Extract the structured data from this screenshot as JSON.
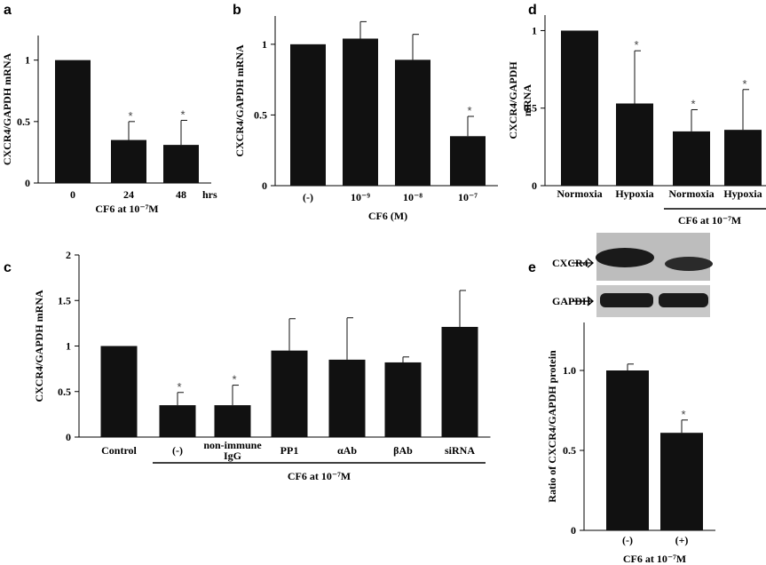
{
  "chart_data": [
    {
      "panel": "a",
      "type": "bar",
      "categories": [
        "0",
        "24",
        "48"
      ],
      "categories_unit": "hrs",
      "values": [
        1.0,
        0.35,
        0.31
      ],
      "errors": [
        0,
        0.15,
        0.2
      ],
      "significant": [
        false,
        true,
        true
      ],
      "ylabel": "CXCR4/GAPDH mRNA",
      "xlabel": "CF6 at 10⁻⁷M",
      "ylim": [
        0,
        1.2
      ],
      "yticks": [
        "0",
        "0.5",
        "1"
      ]
    },
    {
      "panel": "b",
      "type": "bar",
      "categories": [
        "(-)",
        "10⁻⁹",
        "10⁻⁸",
        "10⁻⁷"
      ],
      "values": [
        1.0,
        1.04,
        0.89,
        0.35
      ],
      "errors": [
        0,
        0.12,
        0.18,
        0.14
      ],
      "significant": [
        false,
        false,
        false,
        true
      ],
      "ylabel": "CXCR4/GAPDH mRNA",
      "xlabel": "CF6 (M)",
      "ylim": [
        0,
        1.2
      ],
      "yticks": [
        "0",
        "0.5",
        "1"
      ]
    },
    {
      "panel": "c",
      "type": "bar",
      "categories": [
        "Control",
        "(-)",
        "non-immune IgG",
        "PP1",
        "αAb",
        "βAb",
        "siRNA"
      ],
      "values": [
        1.0,
        0.35,
        0.35,
        0.95,
        0.85,
        0.82,
        1.21
      ],
      "errors": [
        0,
        0.14,
        0.22,
        0.35,
        0.46,
        0.06,
        0.4
      ],
      "significant": [
        false,
        true,
        true,
        false,
        false,
        false,
        false
      ],
      "ylabel": "CXCR4/GAPDH mRNA",
      "group_label": "CF6 at 10⁻⁷M",
      "ylim": [
        0,
        2
      ],
      "yticks": [
        "0",
        "0.5",
        "1",
        "1.5",
        "2"
      ]
    },
    {
      "panel": "d",
      "type": "bar",
      "categories": [
        "Normoxia",
        "Hypoxia",
        "Normoxia",
        "Hypoxia"
      ],
      "values": [
        1.0,
        0.53,
        0.35,
        0.36
      ],
      "errors": [
        0,
        0.34,
        0.14,
        0.26
      ],
      "significant": [
        false,
        true,
        true,
        true
      ],
      "ylabel_lines": [
        "CXCR4/GAPDH",
        "mRNA"
      ],
      "group_label": "CF6 at 10⁻⁷M",
      "ylim": [
        0,
        1.1
      ],
      "yticks": [
        "0",
        "0.5",
        "1"
      ]
    },
    {
      "panel": "e",
      "type": "bar",
      "categories": [
        "(-)",
        "(+)"
      ],
      "values": [
        1.0,
        0.61
      ],
      "errors": [
        0.04,
        0.08
      ],
      "significant": [
        false,
        true
      ],
      "ylabel": "Ratio of CXCR4/GAPDH protein",
      "xlabel": "CF6 at 10⁻⁷M",
      "ylim": [
        0,
        1.3
      ],
      "yticks": [
        "0",
        "0.5",
        "1.0"
      ],
      "blot_labels": [
        "CXCR4",
        "GAPDH"
      ]
    }
  ]
}
